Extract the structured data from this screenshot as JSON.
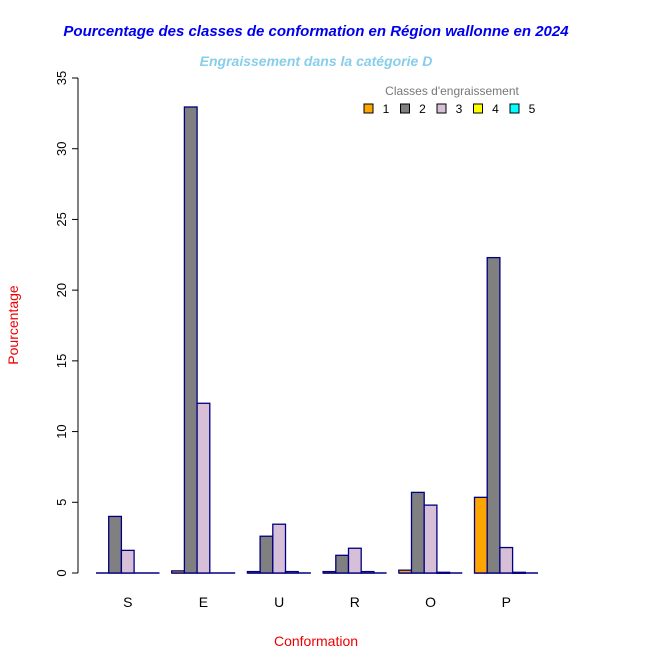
{
  "chart_data": {
    "type": "bar",
    "title": "Pourcentage des classes de conformation en Région wallonne en 2024",
    "subtitle": "Engraissement dans la catégorie D",
    "xlabel": "Conformation",
    "ylabel": "Pourcentage",
    "ylim": [
      0,
      35
    ],
    "yticks": [
      "0",
      "5",
      "10",
      "15",
      "20",
      "25",
      "30",
      "35"
    ],
    "categories": [
      "S",
      "E",
      "U",
      "R",
      "O",
      "P"
    ],
    "legend_title": "Classes d'engraissement",
    "legend_position": "top-right",
    "series": [
      {
        "name": "1",
        "color": "#FFA500",
        "values": [
          0,
          0.15,
          0.1,
          0.1,
          0.2,
          5.35
        ]
      },
      {
        "name": "2",
        "color": "#808080",
        "values": [
          4.0,
          32.95,
          2.6,
          1.25,
          5.7,
          22.3
        ]
      },
      {
        "name": "3",
        "color": "#D8BFD8",
        "values": [
          1.6,
          12.0,
          3.45,
          1.75,
          4.8,
          1.8
        ]
      },
      {
        "name": "4",
        "color": "#FFFF00",
        "values": [
          0,
          0,
          0.1,
          0.1,
          0.05,
          0.05
        ]
      },
      {
        "name": "5",
        "color": "#00FFFF",
        "values": [
          0,
          0,
          0,
          0,
          0,
          0
        ]
      }
    ]
  }
}
